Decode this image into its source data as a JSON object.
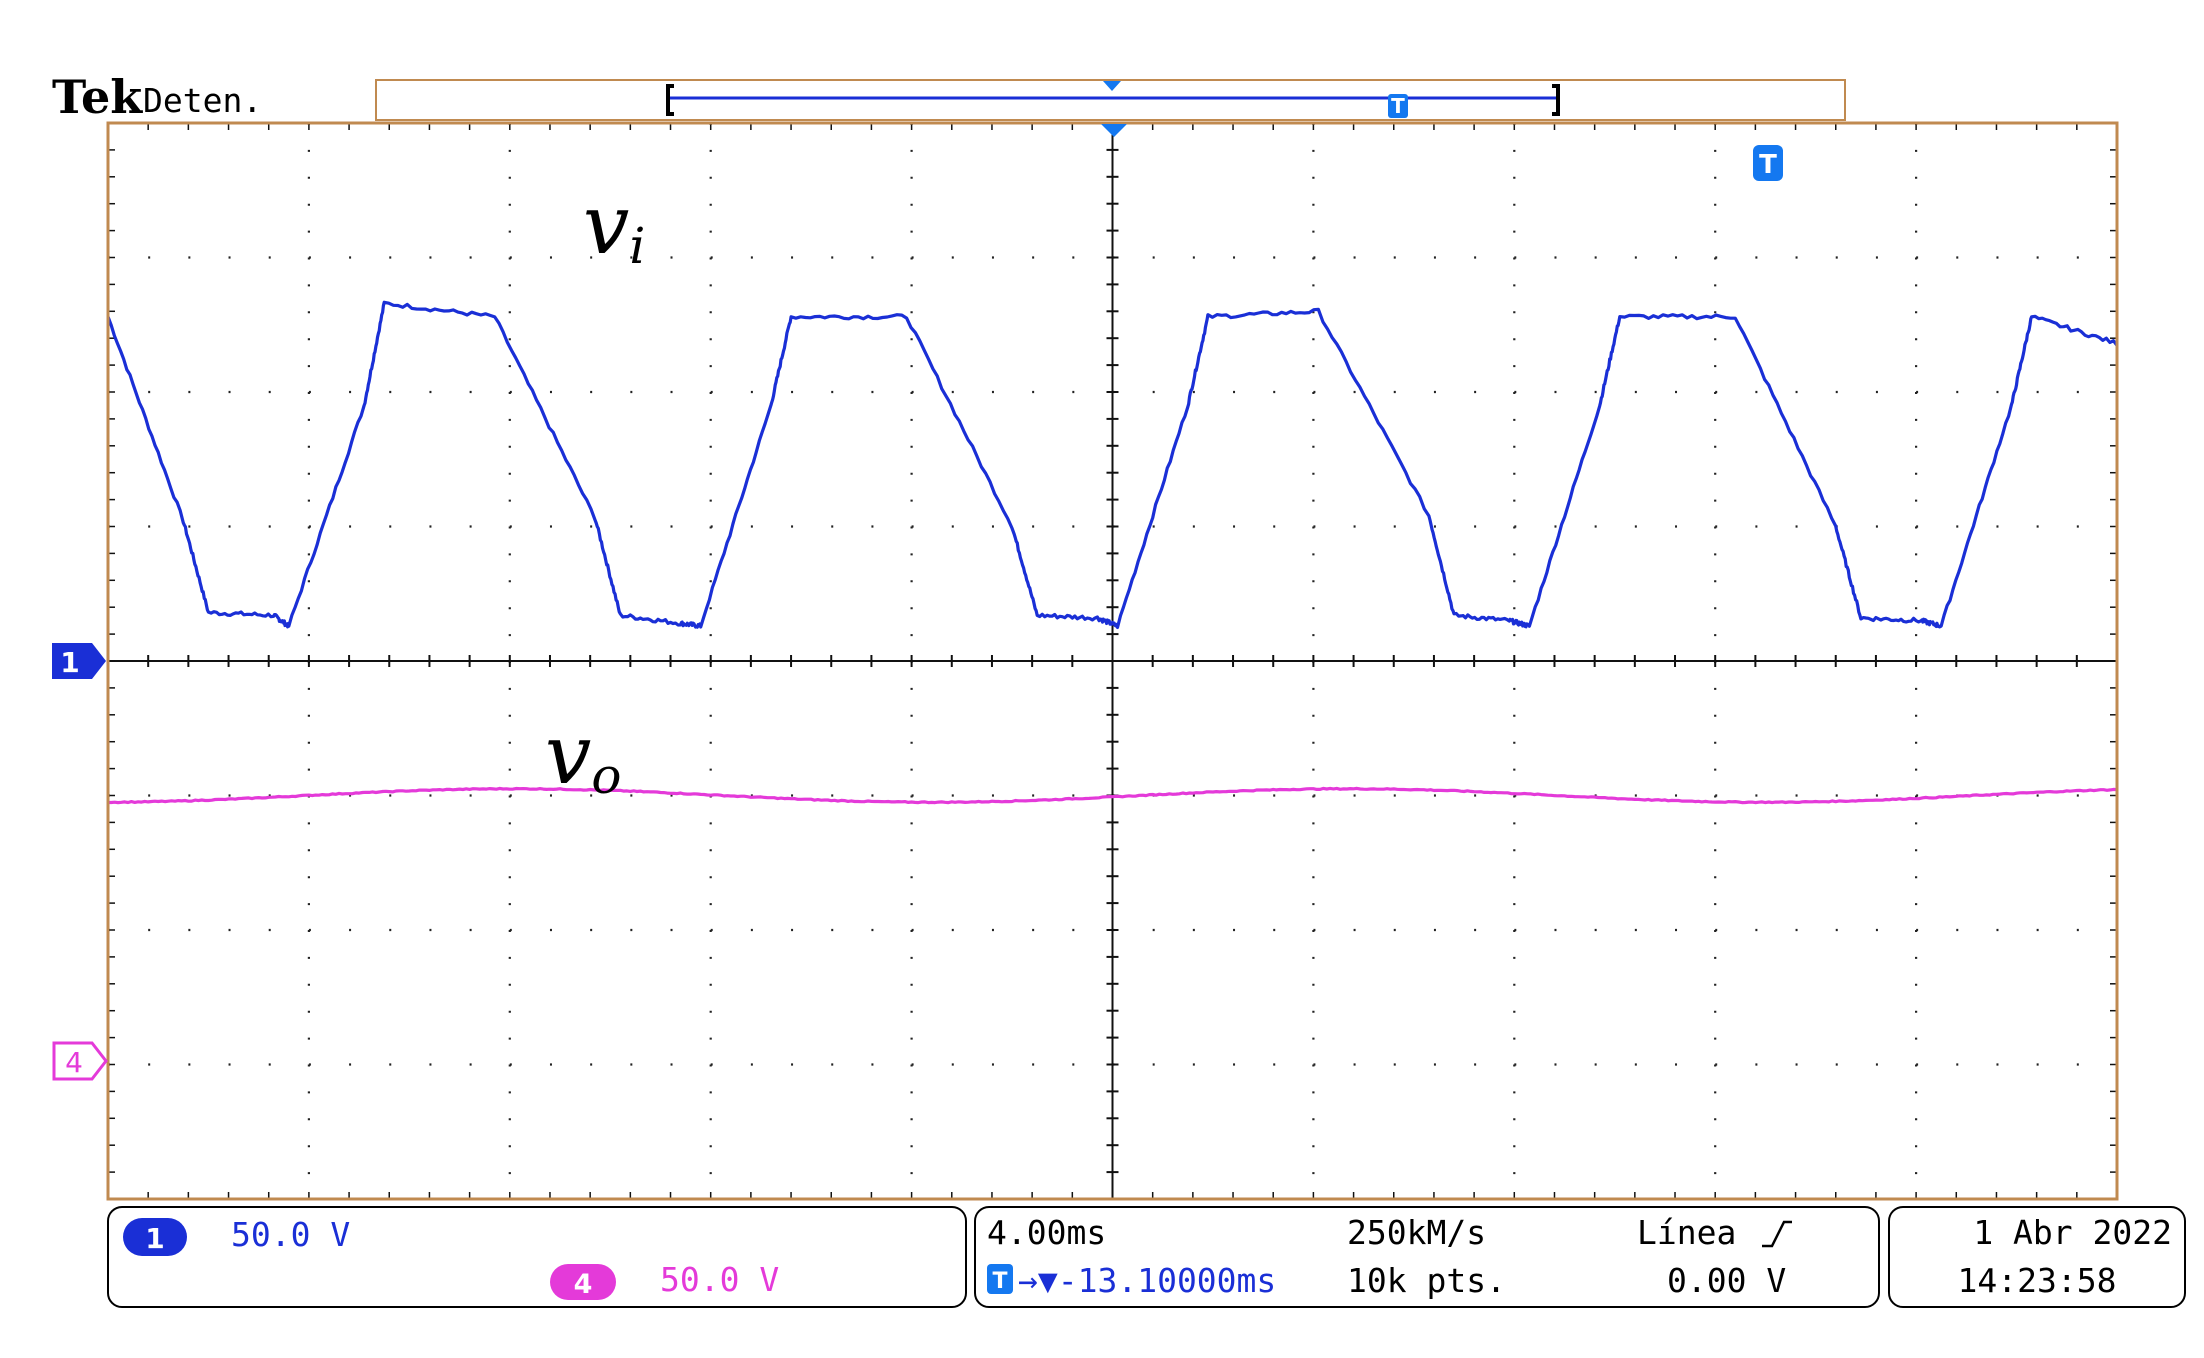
{
  "header": {
    "brand": "Tek",
    "status": "Deten."
  },
  "colors": {
    "frame": "#c08a50",
    "grid": "#222222",
    "ch1": "#1a2fd6",
    "ch4": "#e43ad9",
    "marker_blue": "#1478f0",
    "text": "#000000"
  },
  "markers": {
    "trigger": "T",
    "ch1": "1",
    "ch4": "4"
  },
  "chart_data": {
    "type": "line",
    "xlim": [
      -26.1,
      13.9
    ],
    "ylim": [
      -200,
      200
    ],
    "grid": true,
    "x_divisions": 10,
    "y_divisions": 8,
    "series": [
      {
        "name": "v_i",
        "color": "#1a2fd6",
        "x": [
          -26.1,
          -24.6,
          -24.1,
          -22.8,
          -22.5,
          -21.0,
          -20.6,
          -18.4,
          -16.4,
          -15.9,
          -14.7,
          -14.3,
          -12.9,
          -12.5,
          -10.2,
          -8.1,
          -7.6,
          -6.4,
          -6.0,
          -4.6,
          -4.2,
          -2.0,
          0.2,
          0.7,
          1.8,
          2.2,
          3.6,
          4.0,
          6.3,
          8.3,
          8.8,
          10.0,
          10.4,
          11.8,
          12.2,
          13.9
        ],
        "y": [
          128,
          52,
          18,
          17,
          13,
          95,
          133,
          128,
          53,
          17,
          14,
          13,
          95,
          128,
          128,
          50,
          17,
          16,
          13,
          95,
          128,
          130,
          54,
          17,
          15,
          13,
          95,
          128,
          128,
          50,
          16,
          15,
          13,
          95,
          128,
          118
        ],
        "label": "v",
        "label_sub": "i"
      },
      {
        "name": "v_o",
        "color": "#e43ad9",
        "x_start": -26.1,
        "x_end": 13.9,
        "center": -50,
        "amplitude": 2.5,
        "period": 16.6,
        "phase_peak": -18.0,
        "label": "v",
        "label_sub": "o"
      }
    ]
  },
  "ch1_info": {
    "badge": "1",
    "scale": "50.0 V"
  },
  "ch4_info": {
    "badge": "4",
    "scale": "50.0 V"
  },
  "horizontal": {
    "scale": "4.00ms",
    "sample_rate": "250kM/s",
    "trigger_type": "Línea",
    "record_length": "10k pts.",
    "trigger_level": "0.00 V",
    "trigger_offset": "→▼-13.10000ms"
  },
  "datetime": {
    "date": "1 Abr  2022",
    "time": "14:23:58"
  }
}
